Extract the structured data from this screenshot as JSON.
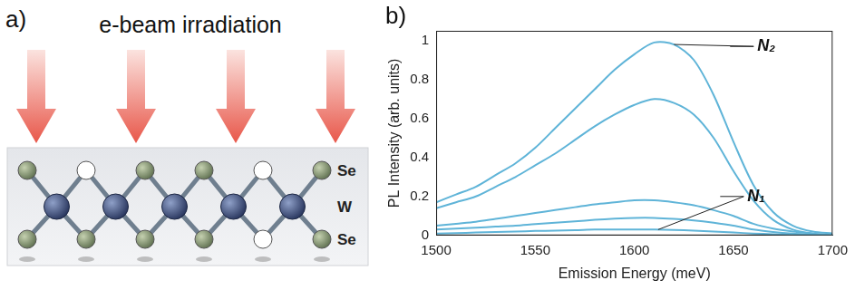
{
  "diagram": {
    "label": "a)",
    "title": "e-beam irradiation",
    "atom_labels": [
      "Se",
      "W",
      "Se"
    ]
  },
  "chart_data": {
    "label": "b)",
    "type": "line",
    "x_label": "Emission Energy (meV)",
    "y_label": "PL Intensity (arb. units)",
    "x": [
      1500,
      1510,
      1520,
      1530,
      1540,
      1550,
      1560,
      1570,
      1580,
      1590,
      1600,
      1610,
      1620,
      1630,
      1640,
      1650,
      1660,
      1670,
      1680,
      1690,
      1700
    ],
    "series": [
      {
        "color": "#5fb4d8",
        "values": [
          0.17,
          0.21,
          0.25,
          0.31,
          0.37,
          0.45,
          0.55,
          0.65,
          0.75,
          0.85,
          0.93,
          0.99,
          0.98,
          0.9,
          0.72,
          0.48,
          0.26,
          0.12,
          0.05,
          0.02,
          0.01
        ]
      },
      {
        "color": "#5fb4d8",
        "values": [
          0.14,
          0.17,
          0.2,
          0.25,
          0.3,
          0.36,
          0.42,
          0.49,
          0.56,
          0.62,
          0.67,
          0.7,
          0.68,
          0.62,
          0.5,
          0.33,
          0.18,
          0.08,
          0.03,
          0.01,
          0
        ]
      },
      {
        "color": "#5fb4d8",
        "values": [
          0.05,
          0.06,
          0.07,
          0.085,
          0.1,
          0.115,
          0.13,
          0.145,
          0.16,
          0.17,
          0.18,
          0.18,
          0.17,
          0.155,
          0.13,
          0.1,
          0.06,
          0.035,
          0.02,
          0.01,
          0
        ]
      },
      {
        "color": "#5fb4d8",
        "values": [
          0.03,
          0.035,
          0.04,
          0.045,
          0.05,
          0.058,
          0.065,
          0.072,
          0.08,
          0.086,
          0.09,
          0.09,
          0.085,
          0.077,
          0.065,
          0.05,
          0.03,
          0.018,
          0.01,
          0.005,
          0
        ]
      },
      {
        "color": "#5fb4d8",
        "values": [
          0.01,
          0.012,
          0.015,
          0.018,
          0.02,
          0.023,
          0.025,
          0.027,
          0.03,
          0.03,
          0.03,
          0.03,
          0.028,
          0.025,
          0.02,
          0.015,
          0.01,
          0.006,
          0.003,
          0.001,
          0
        ]
      }
    ],
    "xlim": [
      1500,
      1700
    ],
    "xticks": [
      1500,
      1550,
      1600,
      1650,
      1700
    ],
    "ylim": [
      0,
      1.05
    ],
    "yticks": [
      0,
      0.2,
      0.4,
      0.6,
      0.8,
      1
    ],
    "grid": false,
    "annotations": [
      {
        "text": "N₂",
        "x": 1662,
        "y": 0.97,
        "target_x": 1620,
        "target_y": 0.98
      },
      {
        "text": "N₁",
        "x": 1657,
        "y": 0.2,
        "target_x": 1612,
        "target_y": 0.03
      }
    ]
  }
}
